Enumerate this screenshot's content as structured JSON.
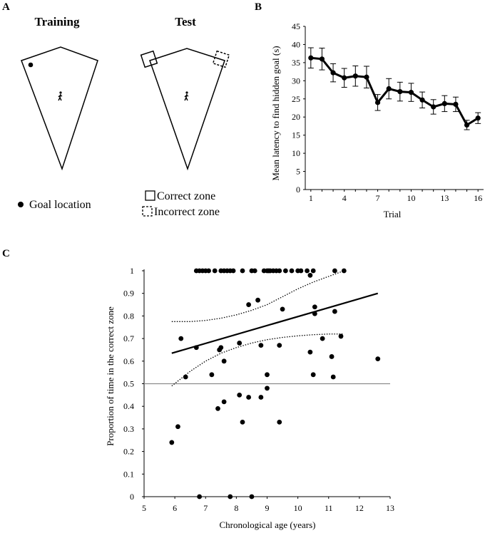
{
  "panel_a": {
    "letter": "A",
    "training_title": "Training",
    "test_title": "Test",
    "legend": {
      "goal_location": "Goal location",
      "correct_zone": "Correct zone",
      "incorrect_zone": "Incorrect zone"
    }
  },
  "panel_b": {
    "letter": "B"
  },
  "panel_c": {
    "letter": "C"
  },
  "chart_data": [
    {
      "id": "B",
      "type": "line",
      "title": "",
      "xlabel": "Trial",
      "ylabel": "Mean latency to find hidden goal (s)",
      "x": [
        1,
        2,
        3,
        4,
        5,
        6,
        7,
        8,
        9,
        10,
        11,
        12,
        13,
        14,
        15,
        16
      ],
      "x_tick_labels": [
        "1",
        "4",
        "7",
        "10",
        "13",
        "16"
      ],
      "x_tick_values": [
        1,
        4,
        7,
        10,
        13,
        16
      ],
      "y_ticks": [
        0,
        5,
        10,
        15,
        20,
        25,
        30,
        35,
        40,
        45
      ],
      "ylim": [
        0,
        45
      ],
      "xlim": [
        0.5,
        16.5
      ],
      "series": [
        {
          "name": "Mean latency",
          "values": [
            36.3,
            36.0,
            32.2,
            30.8,
            31.3,
            31.0,
            24.0,
            27.8,
            27.0,
            26.8,
            24.7,
            22.8,
            23.7,
            23.5,
            17.8,
            19.7
          ],
          "errors": [
            2.8,
            3.0,
            2.5,
            2.6,
            2.8,
            3.0,
            2.2,
            2.8,
            2.6,
            2.5,
            2.2,
            2.0,
            2.2,
            2.0,
            1.3,
            1.5
          ]
        }
      ]
    },
    {
      "id": "C",
      "type": "scatter",
      "title": "",
      "xlabel": "Chronological age (years)",
      "ylabel": "Proportion of time in the correct zone",
      "xlim": [
        5,
        13
      ],
      "ylim": [
        0,
        1
      ],
      "x_ticks": [
        5,
        6,
        7,
        8,
        9,
        10,
        11,
        12,
        13
      ],
      "y_ticks": [
        0,
        0.1,
        0.2,
        0.3,
        0.4,
        0.5,
        0.6,
        0.7,
        0.8,
        0.9,
        1
      ],
      "y_tick_labels": [
        "0",
        "0.1",
        "0.2",
        "0.3",
        "0.4",
        "0.5",
        "0.6",
        "0.7",
        "0.8",
        "0.9",
        "1"
      ],
      "reference_line_y": 0.5,
      "regression": {
        "x": [
          5.9,
          12.6
        ],
        "y": [
          0.635,
          0.9
        ]
      },
      "confidence_upper": {
        "x": [
          5.9,
          6.5,
          7.0,
          7.5,
          8.0,
          8.5,
          9.0,
          9.5,
          10.0,
          10.5,
          11.0,
          11.5
        ],
        "y": [
          0.775,
          0.775,
          0.78,
          0.79,
          0.805,
          0.825,
          0.85,
          0.885,
          0.92,
          0.95,
          0.975,
          1.0
        ]
      },
      "confidence_lower": {
        "x": [
          5.9,
          6.5,
          7.0,
          7.5,
          8.0,
          8.5,
          9.0,
          9.5,
          10.0,
          10.5,
          11.0,
          11.5
        ],
        "y": [
          0.49,
          0.555,
          0.6,
          0.635,
          0.66,
          0.68,
          0.695,
          0.705,
          0.712,
          0.717,
          0.72,
          0.72
        ]
      },
      "points": [
        [
          6.7,
          1
        ],
        [
          6.8,
          1
        ],
        [
          6.9,
          1
        ],
        [
          7.0,
          1
        ],
        [
          7.1,
          1
        ],
        [
          7.3,
          1
        ],
        [
          7.5,
          1
        ],
        [
          7.6,
          1
        ],
        [
          7.7,
          1
        ],
        [
          7.8,
          1
        ],
        [
          7.9,
          1
        ],
        [
          8.2,
          1
        ],
        [
          8.5,
          1
        ],
        [
          8.6,
          1
        ],
        [
          8.9,
          1
        ],
        [
          9.0,
          1
        ],
        [
          9.05,
          1
        ],
        [
          9.1,
          1
        ],
        [
          9.2,
          1
        ],
        [
          9.3,
          1
        ],
        [
          9.4,
          1
        ],
        [
          9.6,
          1
        ],
        [
          9.8,
          1
        ],
        [
          10.0,
          1
        ],
        [
          10.1,
          1
        ],
        [
          10.3,
          1
        ],
        [
          10.5,
          1
        ],
        [
          11.2,
          1
        ],
        [
          11.5,
          1
        ],
        [
          10.4,
          0.98
        ],
        [
          8.7,
          0.87
        ],
        [
          8.4,
          0.85
        ],
        [
          10.55,
          0.84
        ],
        [
          9.5,
          0.83
        ],
        [
          11.2,
          0.82
        ],
        [
          10.55,
          0.81
        ],
        [
          6.2,
          0.7
        ],
        [
          10.8,
          0.7
        ],
        [
          11.4,
          0.71
        ],
        [
          8.1,
          0.68
        ],
        [
          8.8,
          0.67
        ],
        [
          9.4,
          0.67
        ],
        [
          6.7,
          0.66
        ],
        [
          7.5,
          0.66
        ],
        [
          7.45,
          0.65
        ],
        [
          10.4,
          0.64
        ],
        [
          11.1,
          0.62
        ],
        [
          7.6,
          0.6
        ],
        [
          12.6,
          0.61
        ],
        [
          6.35,
          0.53
        ],
        [
          7.2,
          0.54
        ],
        [
          9.0,
          0.54
        ],
        [
          10.5,
          0.54
        ],
        [
          11.15,
          0.53
        ],
        [
          9.0,
          0.48
        ],
        [
          8.1,
          0.45
        ],
        [
          8.8,
          0.44
        ],
        [
          8.4,
          0.44
        ],
        [
          7.6,
          0.42
        ],
        [
          7.4,
          0.39
        ],
        [
          8.2,
          0.33
        ],
        [
          9.4,
          0.33
        ],
        [
          6.1,
          0.31
        ],
        [
          5.9,
          0.24
        ],
        [
          6.8,
          0
        ],
        [
          7.8,
          0
        ],
        [
          8.5,
          0
        ]
      ]
    }
  ]
}
